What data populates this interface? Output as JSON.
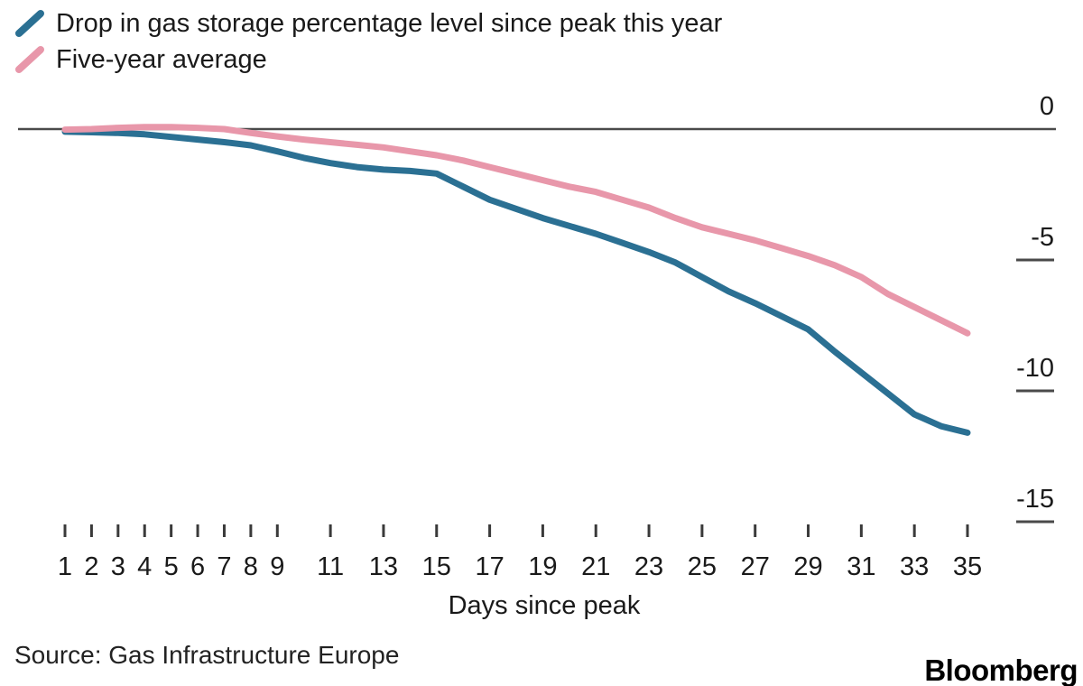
{
  "colors": {
    "this_year_line": "#2b7093",
    "five_year_line": "#e897aa",
    "axis": "#4a4a4a",
    "tick": "#3a3a3a",
    "text": "#1a1a1a"
  },
  "legend": {
    "items": [
      {
        "label": "Drop in gas storage percentage level since peak this year"
      },
      {
        "label": "Five-year average"
      }
    ]
  },
  "footer": {
    "source": "Source: Gas Infrastructure Europe",
    "brand": "Bloomberg"
  },
  "chart_data": {
    "type": "line",
    "title": "",
    "xlabel": "Days since peak",
    "ylabel": "",
    "x": [
      1,
      2,
      3,
      4,
      5,
      6,
      7,
      8,
      9,
      10,
      11,
      12,
      13,
      14,
      15,
      16,
      17,
      18,
      19,
      20,
      21,
      22,
      23,
      24,
      25,
      26,
      27,
      28,
      29,
      30,
      31,
      32,
      33,
      34,
      35
    ],
    "x_label_days": [
      1,
      2,
      3,
      4,
      5,
      6,
      7,
      8,
      9,
      11,
      13,
      15,
      17,
      19,
      21,
      23,
      25,
      27,
      29,
      31,
      33,
      35
    ],
    "yticks": [
      0,
      -5,
      -10,
      -15
    ],
    "ylim": [
      -15.5,
      0.5
    ],
    "grid": "zero-line-only",
    "legend_position": "top-left",
    "series": [
      {
        "key": "this-year",
        "name": "Drop in gas storage percentage level since peak this year",
        "color": "#2b7093",
        "values": [
          -0.1,
          -0.12,
          -0.15,
          -0.2,
          -0.3,
          -0.4,
          -0.5,
          -0.62,
          -0.85,
          -1.1,
          -1.3,
          -1.45,
          -1.55,
          -1.6,
          -1.7,
          -2.2,
          -2.7,
          -3.05,
          -3.4,
          -3.7,
          -4.0,
          -4.35,
          -4.7,
          -5.1,
          -5.65,
          -6.2,
          -6.65,
          -7.15,
          -7.65,
          -8.5,
          -9.3,
          -10.1,
          -10.9,
          -11.35,
          -11.6
        ]
      },
      {
        "key": "five-year-average",
        "name": "Five-year average",
        "color": "#e897aa",
        "values": [
          -0.02,
          0.0,
          0.05,
          0.08,
          0.08,
          0.05,
          0.0,
          -0.15,
          -0.28,
          -0.4,
          -0.5,
          -0.6,
          -0.7,
          -0.85,
          -1.0,
          -1.2,
          -1.45,
          -1.7,
          -1.95,
          -2.2,
          -2.4,
          -2.7,
          -3.0,
          -3.4,
          -3.75,
          -4.0,
          -4.25,
          -4.55,
          -4.85,
          -5.2,
          -5.65,
          -6.3,
          -6.8,
          -7.3,
          -7.8
        ]
      }
    ]
  }
}
